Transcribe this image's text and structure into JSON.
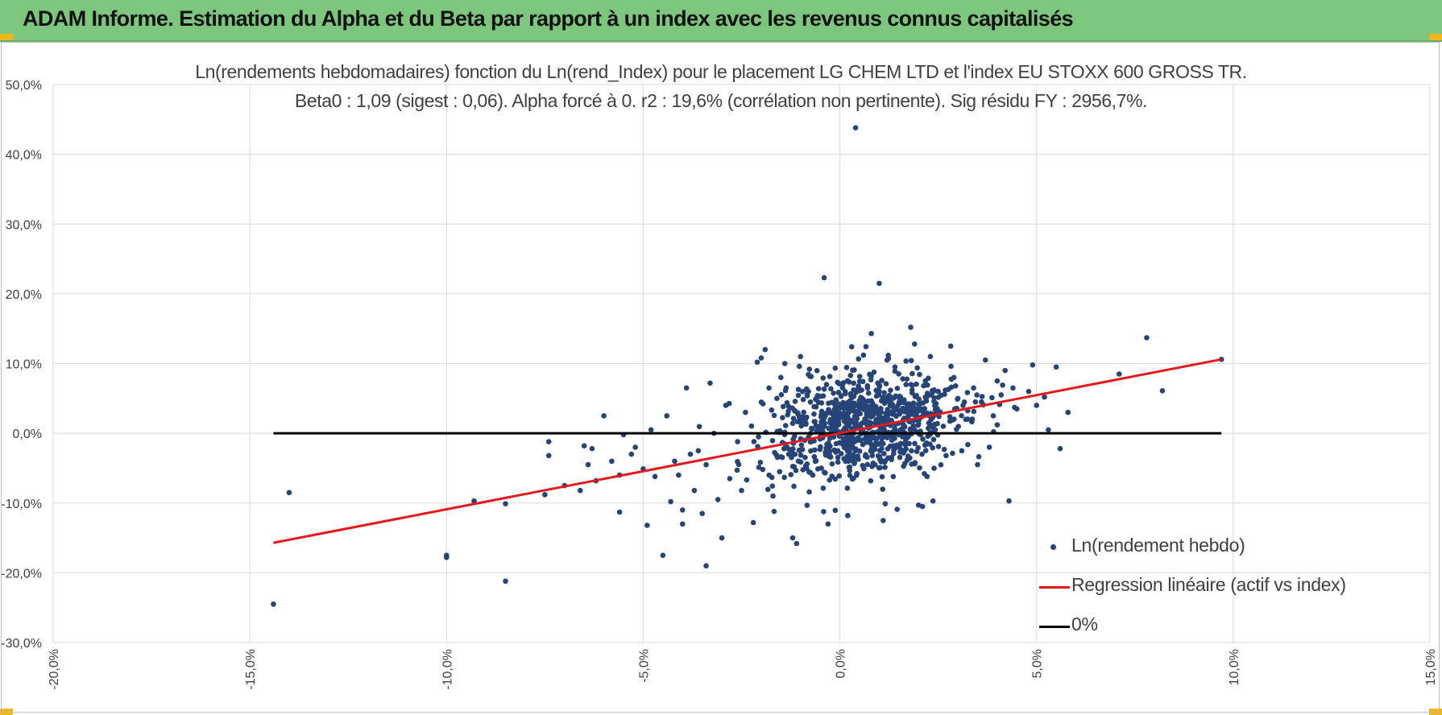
{
  "header": {
    "title": "ADAM Informe. Estimation du Alpha et du Beta par rapport à un index avec les revenus connus capitalisés",
    "background": "#7dc67e",
    "corner_color": "#f3b51c"
  },
  "chart_data": {
    "type": "scatter",
    "title": "Ln(rendements hebdomadaires) fonction du Ln(rend_Index) pour le placement LG CHEM LTD et l'index EU STOXX 600 GROSS TR.",
    "subtitle": "Beta0 : 1,09 (sigest : 0,06).  Alpha forcé à 0. r2 : 19,6% (corrélation non pertinente). Sig résidu FY : 2956,7%.",
    "xlabel": "",
    "ylabel": "",
    "xlim": [
      -0.2,
      0.15
    ],
    "ylim": [
      -0.3,
      0.5
    ],
    "x_ticks": [
      -0.2,
      -0.15,
      -0.1,
      -0.05,
      0.0,
      0.05,
      0.1,
      0.15
    ],
    "x_tick_labels": [
      "-20,0%",
      "-15,0%",
      "-10,0%",
      "-5,0%",
      "0,0%",
      "5,0%",
      "10,0%",
      "15,0%"
    ],
    "y_ticks": [
      -0.3,
      -0.2,
      -0.1,
      0.0,
      0.1,
      0.2,
      0.3,
      0.4,
      0.5
    ],
    "y_tick_labels": [
      "-30,0%",
      "-20,0%",
      "-10,0%",
      "0,0%",
      "10,0%",
      "20,0%",
      "30,0%",
      "40,0%",
      "50,0%"
    ],
    "grid": true,
    "legend_position": "bottom-right",
    "series": [
      {
        "name": "Ln(rendement hebdo)",
        "kind": "scatter",
        "color": "#264478",
        "points": [
          [
            -0.144,
            -0.245
          ],
          [
            -0.14,
            -0.085
          ],
          [
            -0.1,
            -0.175
          ],
          [
            -0.1,
            -0.178
          ],
          [
            -0.093,
            -0.097
          ],
          [
            -0.085,
            -0.212
          ],
          [
            -0.085,
            -0.101
          ],
          [
            -0.075,
            -0.088
          ],
          [
            -0.074,
            -0.012
          ],
          [
            -0.074,
            -0.032
          ],
          [
            -0.07,
            -0.075
          ],
          [
            -0.066,
            -0.082
          ],
          [
            -0.065,
            -0.018
          ],
          [
            -0.064,
            -0.045
          ],
          [
            -0.062,
            -0.068
          ],
          [
            -0.063,
            -0.022
          ],
          [
            -0.06,
            0.025
          ],
          [
            -0.058,
            -0.04
          ],
          [
            -0.056,
            -0.06
          ],
          [
            -0.056,
            -0.113
          ],
          [
            -0.055,
            -0.002
          ],
          [
            -0.053,
            -0.03
          ],
          [
            -0.052,
            -0.02
          ],
          [
            -0.05,
            -0.051
          ],
          [
            -0.049,
            -0.132
          ],
          [
            -0.048,
            0.005
          ],
          [
            -0.047,
            -0.062
          ],
          [
            -0.045,
            -0.175
          ],
          [
            -0.044,
            0.025
          ],
          [
            -0.043,
            -0.098
          ],
          [
            -0.042,
            -0.04
          ],
          [
            -0.041,
            -0.06
          ],
          [
            -0.04,
            -0.11
          ],
          [
            -0.04,
            -0.13
          ],
          [
            -0.039,
            0.065
          ],
          [
            -0.038,
            -0.03
          ],
          [
            -0.037,
            -0.082
          ],
          [
            -0.036,
            -0.025
          ],
          [
            -0.035,
            -0.115
          ],
          [
            -0.034,
            -0.19
          ],
          [
            -0.034,
            -0.045
          ],
          [
            -0.033,
            0.072
          ],
          [
            -0.032,
            0.0
          ],
          [
            -0.031,
            -0.095
          ],
          [
            -0.03,
            -0.15
          ],
          [
            -0.029,
            0.04
          ],
          [
            -0.028,
            -0.065
          ],
          [
            -0.026,
            -0.012
          ],
          [
            -0.025,
            -0.082
          ],
          [
            -0.024,
            0.03
          ],
          [
            -0.022,
            -0.128
          ],
          [
            -0.021,
            0.102
          ],
          [
            -0.02,
            0.108
          ],
          [
            -0.019,
            0.12
          ],
          [
            -0.018,
            -0.06
          ],
          [
            -0.017,
            -0.09
          ],
          [
            -0.016,
            0.05
          ],
          [
            -0.015,
            0.08
          ],
          [
            -0.014,
            0.1
          ],
          [
            -0.013,
            -0.03
          ],
          [
            -0.012,
            -0.15
          ],
          [
            -0.011,
            -0.158
          ],
          [
            -0.01,
            0.11
          ],
          [
            -0.008,
            0.06
          ],
          [
            -0.005,
            -0.005
          ],
          [
            -0.004,
            0.223
          ],
          [
            -0.003,
            -0.13
          ],
          [
            -0.001,
            0.048
          ],
          [
            0.002,
            -0.118
          ],
          [
            0.003,
            0.124
          ],
          [
            0.004,
            0.438
          ],
          [
            0.005,
            0.042
          ],
          [
            0.006,
            0.112
          ],
          [
            0.007,
            0.068
          ],
          [
            0.008,
            0.143
          ],
          [
            0.01,
            0.215
          ],
          [
            0.011,
            -0.125
          ],
          [
            0.012,
            0.105
          ],
          [
            0.014,
            0.095
          ],
          [
            0.015,
            -0.02
          ],
          [
            0.016,
            0.078
          ],
          [
            0.018,
            0.152
          ],
          [
            0.019,
            0.128
          ],
          [
            0.02,
            -0.103
          ],
          [
            0.021,
            -0.105
          ],
          [
            0.023,
            0.11
          ],
          [
            0.025,
            0.06
          ],
          [
            0.027,
            -0.032
          ],
          [
            0.029,
            0.08
          ],
          [
            0.03,
            0.05
          ],
          [
            0.031,
            -0.025
          ],
          [
            0.032,
            0.02
          ],
          [
            0.034,
            0.065
          ],
          [
            0.035,
            -0.045
          ],
          [
            0.036,
            0.045
          ],
          [
            0.037,
            0.105
          ],
          [
            0.038,
            -0.02
          ],
          [
            0.039,
            0.025
          ],
          [
            0.04,
            0.075
          ],
          [
            0.041,
            0.055
          ],
          [
            0.042,
            0.09
          ],
          [
            0.043,
            -0.097
          ],
          [
            0.044,
            0.065
          ],
          [
            0.045,
            0.035
          ],
          [
            0.048,
            0.06
          ],
          [
            0.049,
            0.098
          ],
          [
            0.05,
            0.04
          ],
          [
            0.052,
            0.052
          ],
          [
            0.053,
            0.005
          ],
          [
            0.055,
            0.095
          ],
          [
            0.056,
            -0.022
          ],
          [
            0.058,
            0.03
          ],
          [
            0.071,
            0.085
          ],
          [
            0.078,
            0.137
          ],
          [
            0.082,
            0.061
          ],
          [
            0.097,
            0.106
          ]
        ]
      },
      {
        "name": "Regression linéaire (actif vs index)",
        "kind": "line",
        "color": "#e31a1c",
        "x": [
          -0.144,
          0.097
        ],
        "y": [
          -0.157,
          0.106
        ]
      },
      {
        "name": "0%",
        "kind": "line",
        "color": "#000000",
        "x": [
          -0.144,
          0.097
        ],
        "y": [
          0.0,
          0.0
        ]
      }
    ]
  }
}
